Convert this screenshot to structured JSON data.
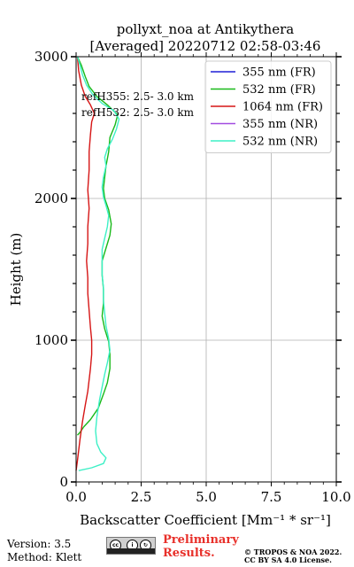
{
  "chart_data": {
    "type": "line",
    "title": "pollyxt_noa at Antikythera",
    "subtitle": "[Averaged] 20220712 02:58-03:46",
    "xlabel": "Backscatter Coefficient [Mm⁻¹ * sr⁻¹]",
    "ylabel": "Height (m)",
    "xlim": [
      0,
      10
    ],
    "ylim": [
      0,
      3000
    ],
    "xticks": [
      0,
      2.5,
      5,
      7.5,
      10
    ],
    "xtick_labels": [
      "0.0",
      "2.5",
      "5.0",
      "7.5",
      "10.0"
    ],
    "yticks": [
      0,
      1000,
      2000,
      3000
    ],
    "ytick_labels": [
      "0",
      "1000",
      "2000",
      "3000"
    ],
    "grid": true,
    "legend_position": "top-right",
    "annotations": [
      "refH355:  2.5- 3.0 km",
      "refH532:  2.5- 3.0 km"
    ],
    "series": [
      {
        "name": "355 nm (FR)",
        "color": "#1f1fd6",
        "points": []
      },
      {
        "name": "532 nm (FR)",
        "color": "#19b919",
        "points": [
          [
            0.05,
            3000
          ],
          [
            0.2,
            2940
          ],
          [
            0.35,
            2860
          ],
          [
            0.5,
            2790
          ],
          [
            0.8,
            2720
          ],
          [
            1.2,
            2660
          ],
          [
            1.6,
            2590
          ],
          [
            1.5,
            2520
          ],
          [
            1.3,
            2430
          ],
          [
            1.25,
            2330
          ],
          [
            1.15,
            2230
          ],
          [
            1.1,
            2150
          ],
          [
            1.05,
            2070
          ],
          [
            1.1,
            2000
          ],
          [
            1.25,
            1920
          ],
          [
            1.35,
            1820
          ],
          [
            1.3,
            1740
          ],
          [
            1.15,
            1650
          ],
          [
            1.0,
            1560
          ],
          [
            1.0,
            1460
          ],
          [
            1.05,
            1360
          ],
          [
            1.05,
            1260
          ],
          [
            1.0,
            1170
          ],
          [
            1.1,
            1080
          ],
          [
            1.25,
            990
          ],
          [
            1.3,
            900
          ],
          [
            1.3,
            800
          ],
          [
            1.2,
            700
          ],
          [
            1.05,
            620
          ],
          [
            0.85,
            520
          ],
          [
            0.55,
            440
          ],
          [
            0.3,
            390
          ],
          [
            0.15,
            350
          ],
          [
            0.05,
            330
          ]
        ]
      },
      {
        "name": "1064 nm (FR)",
        "color": "#d61515",
        "points": [
          [
            0.05,
            3000
          ],
          [
            0.1,
            2900
          ],
          [
            0.2,
            2800
          ],
          [
            0.35,
            2720
          ],
          [
            0.55,
            2660
          ],
          [
            0.7,
            2600
          ],
          [
            0.6,
            2540
          ],
          [
            0.55,
            2450
          ],
          [
            0.5,
            2330
          ],
          [
            0.5,
            2200
          ],
          [
            0.45,
            2060
          ],
          [
            0.5,
            1930
          ],
          [
            0.45,
            1800
          ],
          [
            0.45,
            1680
          ],
          [
            0.4,
            1560
          ],
          [
            0.45,
            1440
          ],
          [
            0.45,
            1330
          ],
          [
            0.5,
            1210
          ],
          [
            0.55,
            1090
          ],
          [
            0.6,
            1000
          ],
          [
            0.6,
            900
          ],
          [
            0.55,
            800
          ],
          [
            0.5,
            720
          ],
          [
            0.45,
            640
          ],
          [
            0.35,
            540
          ],
          [
            0.25,
            430
          ],
          [
            0.15,
            300
          ],
          [
            0.05,
            150
          ],
          [
            0.0,
            80
          ]
        ]
      },
      {
        "name": "355 nm (NR)",
        "color": "#a24ce0",
        "points": []
      },
      {
        "name": "532 nm (NR)",
        "color": "#3df0c6",
        "points": [
          [
            0.05,
            3000
          ],
          [
            0.15,
            2940
          ],
          [
            0.25,
            2870
          ],
          [
            0.4,
            2800
          ],
          [
            0.65,
            2730
          ],
          [
            1.0,
            2670
          ],
          [
            1.45,
            2620
          ],
          [
            1.65,
            2560
          ],
          [
            1.55,
            2490
          ],
          [
            1.4,
            2420
          ],
          [
            1.2,
            2350
          ],
          [
            1.1,
            2290
          ],
          [
            1.15,
            2230
          ],
          [
            1.05,
            2150
          ],
          [
            1.0,
            2080
          ],
          [
            1.05,
            2010
          ],
          [
            1.15,
            1950
          ],
          [
            1.25,
            1880
          ],
          [
            1.2,
            1800
          ],
          [
            1.1,
            1720
          ],
          [
            1.0,
            1640
          ],
          [
            1.0,
            1550
          ],
          [
            1.0,
            1460
          ],
          [
            1.05,
            1370
          ],
          [
            1.05,
            1280
          ],
          [
            1.1,
            1190
          ],
          [
            1.15,
            1100
          ],
          [
            1.25,
            1010
          ],
          [
            1.3,
            930
          ],
          [
            1.2,
            840
          ],
          [
            1.1,
            760
          ],
          [
            1.0,
            670
          ],
          [
            0.9,
            580
          ],
          [
            0.8,
            460
          ],
          [
            0.75,
            360
          ],
          [
            0.8,
            270
          ],
          [
            0.95,
            210
          ],
          [
            1.15,
            170
          ],
          [
            1.05,
            130
          ],
          [
            0.6,
            100
          ],
          [
            0.1,
            80
          ]
        ]
      }
    ]
  },
  "footer": {
    "version": "Version: 3.5",
    "method": "Method: Klett",
    "preliminary_line1": "Preliminary",
    "preliminary_line2": "Results.",
    "copyright_line1": "© TROPOS & NOA 2022.",
    "copyright_line2": "CC BY SA 4.0 License."
  }
}
